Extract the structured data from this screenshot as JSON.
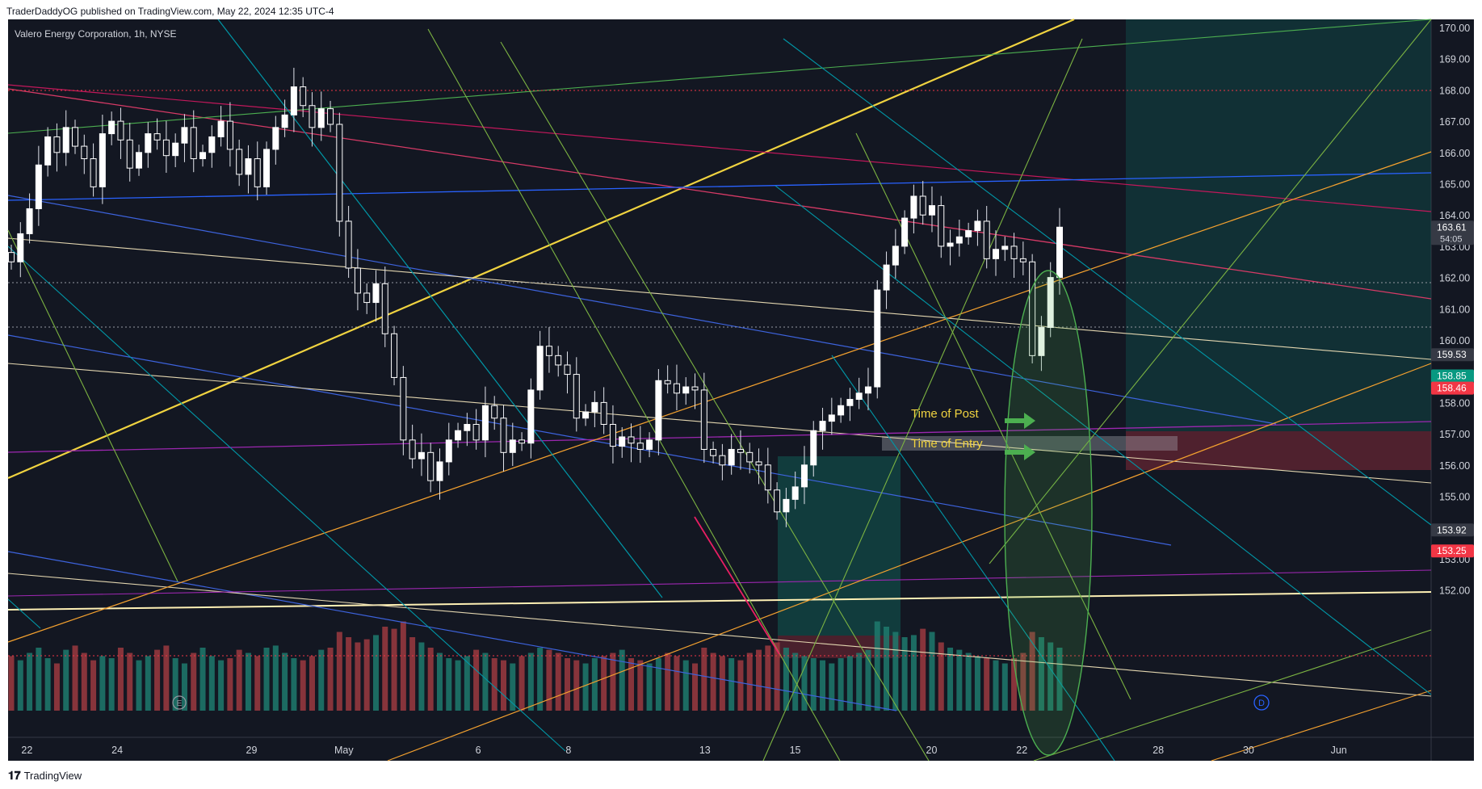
{
  "header": {
    "published": "TraderDaddyOG published on TradingView.com, May 22, 2024 12:35 UTC-4"
  },
  "footer": {
    "brand": "TradingView"
  },
  "chart_data": {
    "type": "candlestick",
    "title": "Valero Energy Corporation, 1h, NYSE",
    "ylim": [
      151.8,
      170.7
    ],
    "y_ticks": [
      170.0,
      169.0,
      168.0,
      167.0,
      166.0,
      165.0,
      164.0,
      163.0,
      162.0,
      161.0,
      160.0,
      158.0,
      157.0,
      156.0,
      155.0,
      153.0,
      152.0
    ],
    "x_ticks": [
      {
        "label": "22",
        "x": 0.45
      },
      {
        "label": "24",
        "x": 2.6
      },
      {
        "label": "29",
        "x": 5.8
      },
      {
        "label": "May",
        "x": 8.0
      },
      {
        "label": "6",
        "x": 11.2
      },
      {
        "label": "8",
        "x": 13.35
      },
      {
        "label": "13",
        "x": 16.6
      },
      {
        "label": "15",
        "x": 18.75
      },
      {
        "label": "20",
        "x": 22.0
      },
      {
        "label": "22",
        "x": 24.15
      },
      {
        "label": "28",
        "x": 27.4
      },
      {
        "label": "30",
        "x": 29.55
      },
      {
        "label": "Jun",
        "x": 31.7
      }
    ],
    "x_range": [
      0,
      33.9
    ],
    "price_labels": [
      {
        "value": "163.61",
        "sub": "54:05",
        "price": 163.61,
        "color": "#363a45"
      },
      {
        "value": "159.53",
        "price": 159.53,
        "color": "#363a45"
      },
      {
        "value": "158.85",
        "price": 158.85,
        "color": "#089981"
      },
      {
        "value": "158.46",
        "price": 158.46,
        "color": "#f23645"
      },
      {
        "value": "153.92",
        "price": 153.92,
        "color": "#363a45"
      },
      {
        "value": "153.25",
        "price": 153.25,
        "color": "#f23645"
      }
    ],
    "annotations": [
      {
        "text": "Time of Post",
        "x": 21.3,
        "y": 160.0,
        "arrow_x": 24.15
      },
      {
        "text": "Time of Entry",
        "x": 21.3,
        "y": 159.2,
        "arrow_x": 24.15
      }
    ],
    "closes": [
      162.5,
      163.4,
      164.2,
      165.6,
      166.5,
      166.0,
      166.8,
      166.2,
      165.8,
      164.9,
      166.6,
      167.0,
      166.4,
      165.5,
      166.0,
      166.6,
      166.4,
      165.9,
      166.3,
      166.8,
      165.8,
      166.0,
      166.5,
      167.0,
      166.1,
      165.3,
      165.8,
      164.9,
      166.1,
      166.8,
      167.2,
      168.1,
      167.5,
      166.8,
      167.4,
      166.9,
      163.8,
      162.3,
      161.5,
      161.2,
      161.8,
      160.2,
      158.8,
      156.8,
      156.2,
      156.4,
      155.5,
      156.1,
      156.8,
      157.1,
      157.3,
      156.8,
      157.9,
      157.5,
      156.4,
      156.8,
      156.7,
      158.4,
      159.8,
      159.5,
      159.2,
      158.9,
      157.5,
      157.7,
      158.0,
      157.3,
      156.6,
      156.9,
      156.7,
      156.5,
      156.8,
      158.7,
      158.6,
      158.3,
      158.5,
      158.4,
      156.5,
      156.3,
      156.0,
      156.5,
      156.4,
      156.1,
      156.0,
      155.2,
      154.5,
      154.9,
      155.3,
      156.0,
      157.1,
      157.4,
      157.6,
      157.9,
      158.1,
      158.3,
      158.5,
      161.6,
      162.4,
      163.0,
      163.9,
      164.6,
      164.0,
      164.3,
      163.0,
      163.1,
      163.3,
      163.5,
      163.8,
      162.6,
      162.9,
      163.0,
      162.6,
      162.5,
      159.5,
      160.4,
      162.0,
      163.61
    ],
    "volumes": [
      52,
      48,
      55,
      60,
      50,
      45,
      58,
      62,
      55,
      48,
      52,
      50,
      60,
      55,
      48,
      52,
      58,
      62,
      50,
      45,
      55,
      60,
      52,
      48,
      50,
      58,
      55,
      52,
      60,
      62,
      55,
      50,
      48,
      52,
      58,
      60,
      75,
      70,
      65,
      68,
      72,
      80,
      78,
      85,
      70,
      65,
      60,
      55,
      50,
      48,
      52,
      58,
      55,
      50,
      48,
      45,
      52,
      55,
      60,
      58,
      55,
      50,
      48,
      45,
      50,
      52,
      55,
      58,
      50,
      48,
      45,
      50,
      55,
      52,
      48,
      45,
      60,
      55,
      52,
      50,
      48,
      55,
      58,
      62,
      65,
      60,
      55,
      52,
      50,
      48,
      45,
      50,
      52,
      55,
      58,
      85,
      80,
      75,
      70,
      72,
      78,
      75,
      65,
      60,
      58,
      55,
      52,
      50,
      48,
      45,
      50,
      55,
      75,
      70,
      65,
      60
    ],
    "vol_up": [
      0,
      1,
      1,
      1,
      1,
      0,
      1,
      0,
      0,
      0,
      1,
      1,
      0,
      0,
      1,
      1,
      0,
      0,
      1,
      1,
      0,
      1,
      1,
      1,
      0,
      0,
      1,
      0,
      1,
      1,
      1,
      1,
      0,
      0,
      1,
      0,
      0,
      0,
      0,
      0,
      1,
      0,
      0,
      0,
      0,
      1,
      0,
      1,
      1,
      1,
      1,
      0,
      1,
      0,
      0,
      1,
      0,
      1,
      1,
      0,
      0,
      0,
      0,
      1,
      1,
      0,
      0,
      1,
      0,
      0,
      1,
      1,
      0,
      0,
      1,
      0,
      0,
      0,
      0,
      1,
      0,
      0,
      0,
      0,
      0,
      1,
      1,
      1,
      1,
      1,
      1,
      1,
      1,
      1,
      1,
      1,
      1,
      1,
      1,
      1,
      0,
      1,
      0,
      1,
      1,
      1,
      1,
      0,
      1,
      1,
      0,
      0,
      0,
      1,
      1,
      1
    ]
  }
}
